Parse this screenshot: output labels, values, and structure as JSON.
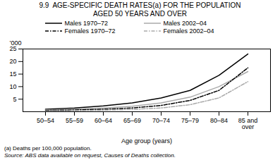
{
  "chart_data": {
    "type": "line",
    "title": "9.9  AGE-SPECIFIC DEATH RATES(a) FOR THE POPULATION",
    "subtitle": "AGED 50 YEARS AND OVER",
    "xlabel": "Age group (years)",
    "ylabel": "’000",
    "annotations": [
      "(a) Deaths per 100,000 population.",
      "Source: ABS data available on request, Causes of Deaths collection."
    ],
    "categories": [
      "50–54",
      "55–59",
      "60–64",
      "65–69",
      "70–74",
      "75–79",
      "80–84",
      "85 and\nover"
    ],
    "series": [
      {
        "name": "Males 1970–72",
        "color": "#000000",
        "line_style": "solid",
        "values": [
          1.0,
          1.5,
          2.3,
          3.5,
          5.5,
          8.5,
          14.5,
          23.0
        ]
      },
      {
        "name": "Males 2002–04",
        "color": "#aaaaaa",
        "line_style": "solid",
        "values": [
          0.7,
          1.0,
          1.5,
          2.2,
          3.5,
          5.8,
          10.0,
          16.0
        ]
      },
      {
        "name": "Females 1970–72",
        "color": "#000000",
        "line_style": "dashdot",
        "values": [
          0.5,
          0.7,
          1.0,
          1.5,
          2.5,
          4.5,
          8.5,
          17.5
        ]
      },
      {
        "name": "Females 2002–04",
        "color": "#aaaaaa",
        "line_style": "dashdot",
        "values": [
          0.3,
          0.4,
          0.6,
          0.9,
          1.5,
          2.8,
          5.5,
          12.0
        ]
      }
    ],
    "ylim": [
      0,
      25
    ],
    "yticks": [
      5,
      10,
      15,
      20,
      25
    ],
    "grid": false,
    "legend": "top"
  }
}
